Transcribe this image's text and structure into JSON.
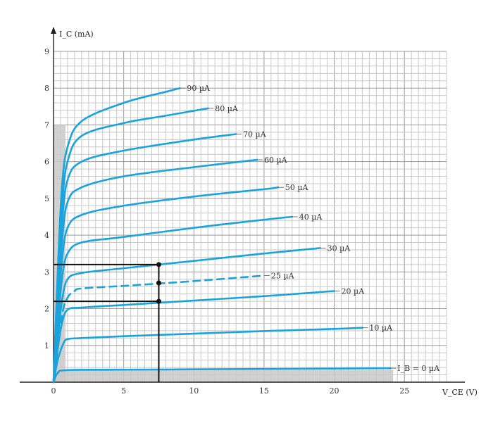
{
  "chart_data": {
    "type": "line",
    "title": "",
    "xlabel": "V_CE (V)",
    "ylabel": "I_C (mA)",
    "xlim": [
      0,
      28
    ],
    "ylim": [
      0,
      9
    ],
    "x_ticks": [
      "0",
      "5",
      "10",
      "15",
      "20",
      "25"
    ],
    "y_ticks": [
      "1",
      "2",
      "3",
      "4",
      "5",
      "6",
      "7",
      "8",
      "9"
    ],
    "grid": true,
    "line_color": "#1aa3dc",
    "series": [
      {
        "name": "I_B = 0 µA",
        "x": [
          0,
          0.3,
          1,
          5,
          10,
          15,
          20,
          24
        ],
        "y": [
          0,
          0.25,
          0.33,
          0.34,
          0.35,
          0.36,
          0.37,
          0.38
        ]
      },
      {
        "name": "10 µA",
        "x": [
          0,
          0.3,
          0.7,
          1,
          2,
          5,
          10,
          15,
          20,
          22
        ],
        "y": [
          0,
          0.6,
          1.05,
          1.17,
          1.2,
          1.25,
          1.32,
          1.39,
          1.45,
          1.48
        ]
      },
      {
        "name": "20 µA",
        "x": [
          0,
          0.3,
          0.6,
          1,
          2,
          5,
          10,
          15,
          20
        ],
        "y": [
          0,
          0.9,
          1.6,
          1.97,
          2.03,
          2.1,
          2.22,
          2.34,
          2.48
        ]
      },
      {
        "name": "25 µA",
        "dashed": true,
        "x": [
          0,
          0.6,
          1,
          1.5,
          2,
          5,
          10,
          15
        ],
        "y": [
          0,
          1.8,
          2.3,
          2.48,
          2.55,
          2.62,
          2.75,
          2.9
        ]
      },
      {
        "name": "30 µA",
        "x": [
          0,
          0.3,
          0.6,
          1,
          2,
          5,
          10,
          15,
          19
        ],
        "y": [
          0,
          1.2,
          2.2,
          2.8,
          2.97,
          3.1,
          3.3,
          3.5,
          3.65
        ]
      },
      {
        "name": "40 µA",
        "x": [
          0,
          0.3,
          0.6,
          1,
          2,
          5,
          10,
          15,
          17
        ],
        "y": [
          0,
          1.5,
          2.8,
          3.5,
          3.8,
          3.95,
          4.2,
          4.42,
          4.5
        ]
      },
      {
        "name": "50 µA",
        "x": [
          0,
          0.3,
          0.6,
          1,
          2,
          5,
          10,
          15,
          16
        ],
        "y": [
          0,
          1.8,
          3.3,
          4.2,
          4.55,
          4.8,
          5.05,
          5.25,
          5.3
        ]
      },
      {
        "name": "60 µA",
        "x": [
          0,
          0.3,
          0.6,
          1,
          2,
          5,
          10,
          14.5
        ],
        "y": [
          0,
          2.1,
          3.8,
          4.9,
          5.3,
          5.6,
          5.85,
          6.05
        ]
      },
      {
        "name": "70 µA",
        "x": [
          0,
          0.3,
          0.6,
          1,
          2,
          5,
          10,
          13
        ],
        "y": [
          0,
          2.4,
          4.3,
          5.5,
          6.0,
          6.3,
          6.6,
          6.75
        ]
      },
      {
        "name": "80 µA",
        "x": [
          0,
          0.3,
          0.6,
          1,
          2,
          5,
          8,
          11
        ],
        "y": [
          0,
          2.7,
          4.8,
          6.0,
          6.7,
          7.05,
          7.25,
          7.45
        ]
      },
      {
        "name": "90 µA",
        "x": [
          0,
          0.3,
          0.6,
          1,
          2,
          5,
          8,
          9
        ],
        "y": [
          0,
          3.0,
          5.3,
          6.4,
          7.1,
          7.6,
          7.9,
          8.0
        ]
      }
    ],
    "annotations": {
      "horizontal_lines_y": [
        3.2,
        2.2
      ],
      "vertical_line_x": 7.5,
      "points": [
        {
          "x": 7.5,
          "y": 3.2
        },
        {
          "x": 7.5,
          "y": 2.7
        },
        {
          "x": 7.5,
          "y": 2.2
        }
      ]
    }
  }
}
